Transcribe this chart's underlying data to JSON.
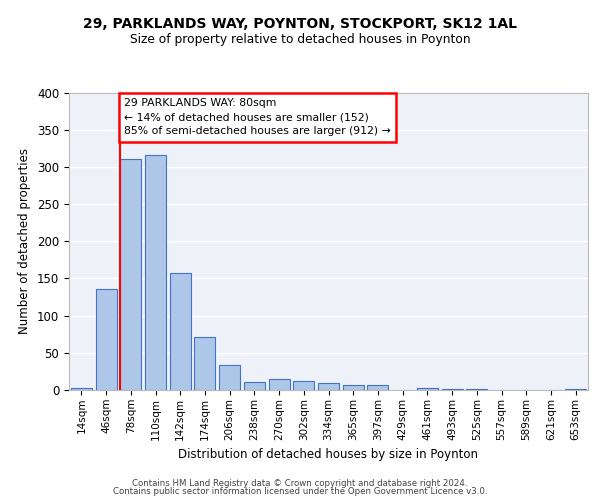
{
  "title1": "29, PARKLANDS WAY, POYNTON, STOCKPORT, SK12 1AL",
  "title2": "Size of property relative to detached houses in Poynton",
  "xlabel": "Distribution of detached houses by size in Poynton",
  "ylabel": "Number of detached properties",
  "categories": [
    "14sqm",
    "46sqm",
    "78sqm",
    "110sqm",
    "142sqm",
    "174sqm",
    "206sqm",
    "238sqm",
    "270sqm",
    "302sqm",
    "334sqm",
    "365sqm",
    "397sqm",
    "429sqm",
    "461sqm",
    "493sqm",
    "525sqm",
    "557sqm",
    "589sqm",
    "621sqm",
    "653sqm"
  ],
  "values": [
    3,
    136,
    311,
    316,
    157,
    71,
    33,
    11,
    15,
    12,
    10,
    7,
    7,
    0,
    3,
    2,
    1,
    0,
    0,
    0,
    2
  ],
  "bar_color": "#aec6e8",
  "bar_edge_color": "#4472c4",
  "annotation_text": "29 PARKLANDS WAY: 80sqm\n← 14% of detached houses are smaller (152)\n85% of semi-detached houses are larger (912) →",
  "annotation_box_color": "white",
  "annotation_box_edge_color": "red",
  "vline_color": "red",
  "footer1": "Contains HM Land Registry data © Crown copyright and database right 2024.",
  "footer2": "Contains public sector information licensed under the Open Government Licence v3.0.",
  "ylim": [
    0,
    400
  ],
  "yticks": [
    0,
    50,
    100,
    150,
    200,
    250,
    300,
    350,
    400
  ],
  "background_color": "#eef2f8",
  "grid_color": "white"
}
